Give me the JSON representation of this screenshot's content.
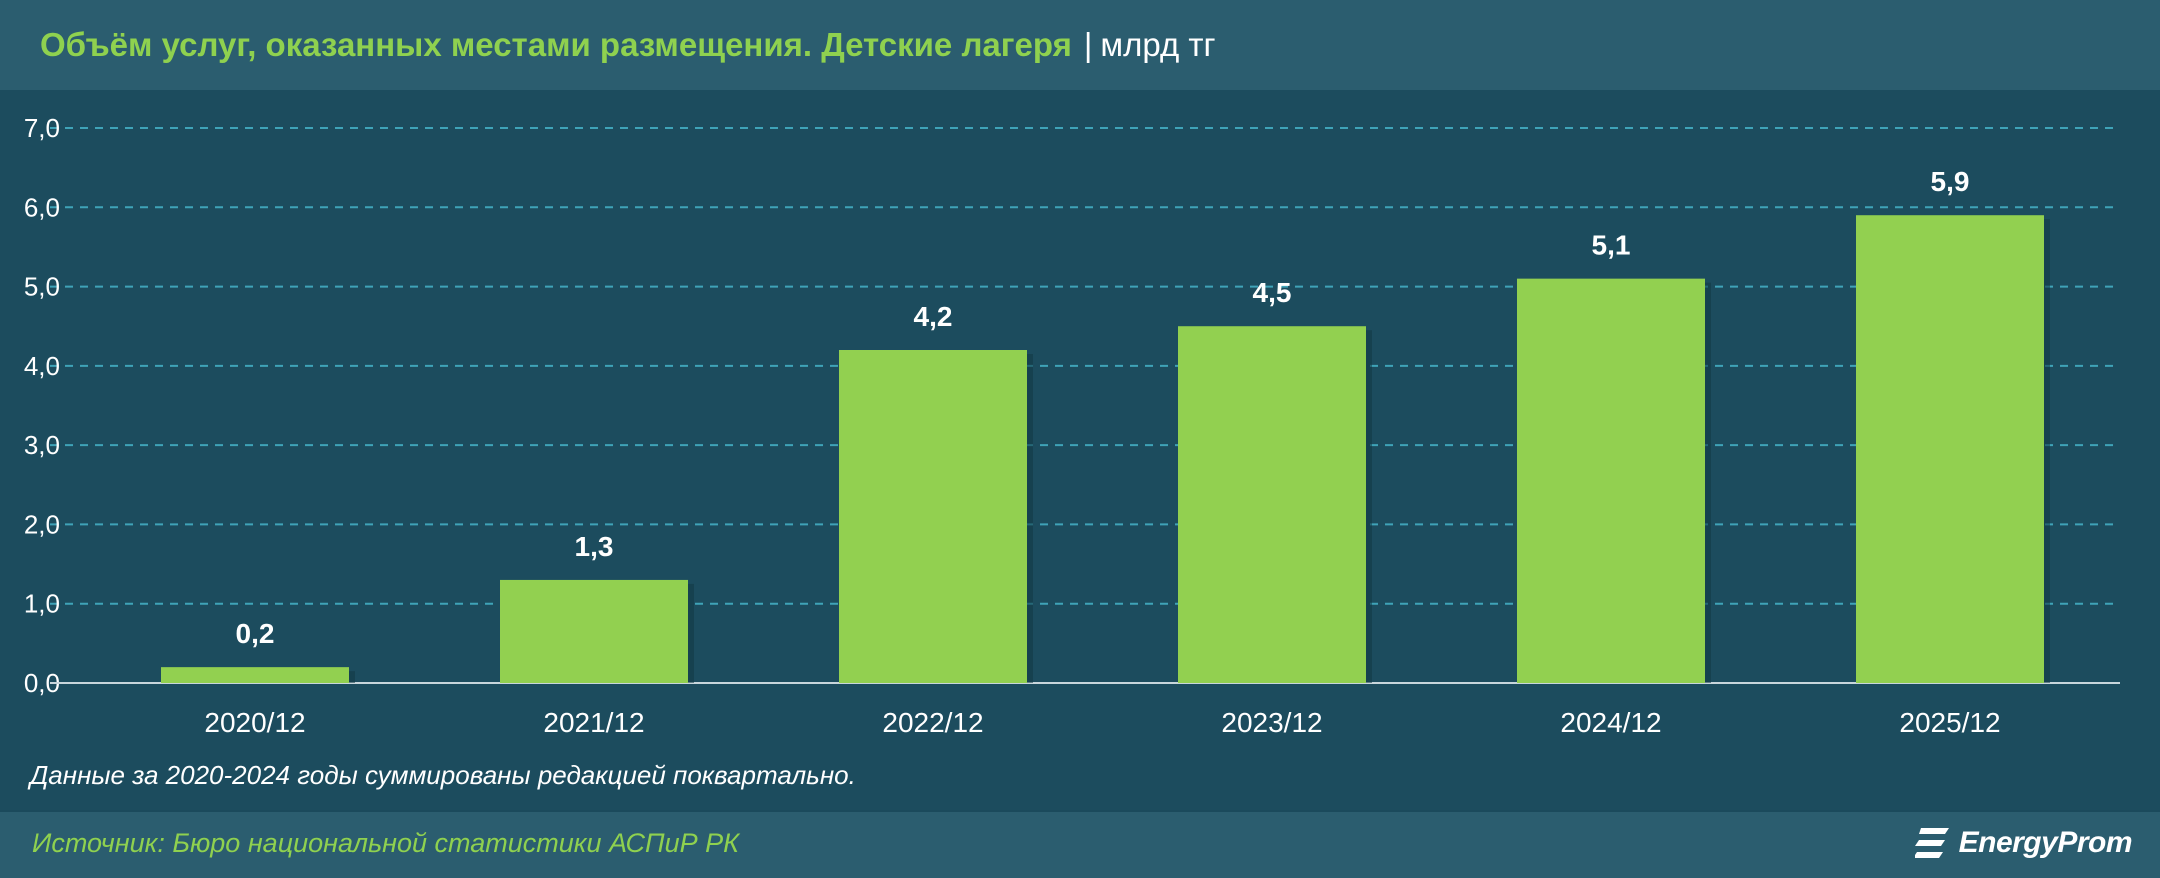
{
  "header": {
    "title": "Объём услуг, оказанных местами размещения. Детские лагеря",
    "separator": "|",
    "unit": "млрд тг"
  },
  "note": "Данные за 2020-2024 годы суммированы редакцией поквартально.",
  "footer": {
    "source": "Источник: Бюро национальной статистики АСПиР РК",
    "logo_text": "EnergyProm",
    "logo_icon": "energyprom-logo-icon"
  },
  "colors": {
    "background": "#1b4a5c",
    "header": "#2b5d6f",
    "bar": "#92d050",
    "title": "#8fd14f",
    "grid": "#3fa3b8"
  },
  "chart_data": {
    "type": "bar",
    "categories": [
      "2020/12",
      "2021/12",
      "2022/12",
      "2023/12",
      "2024/12",
      "2025/12"
    ],
    "values": [
      0.2,
      1.3,
      4.2,
      4.5,
      5.1,
      5.9
    ],
    "value_labels": [
      "0,2",
      "1,3",
      "4,2",
      "4,5",
      "5,1",
      "5,9"
    ],
    "yticks": [
      "0,0",
      "1,0",
      "2,0",
      "3,0",
      "4,0",
      "5,0",
      "6,0",
      "7,0"
    ],
    "ylim": [
      0,
      7
    ],
    "grid": true,
    "xlabel": "",
    "ylabel": ""
  }
}
